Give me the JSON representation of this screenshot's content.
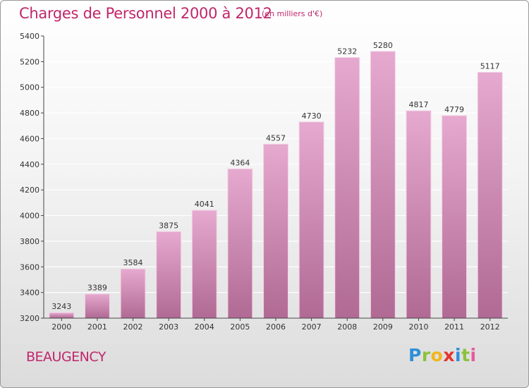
{
  "header": {
    "title": "Charges de Personnel 2000 à 2012",
    "subtitle": "(en milliers d'€)"
  },
  "footer": {
    "place": "BEAUGENCY",
    "logo_text": "Proxiti"
  },
  "colors": {
    "title": "#c0266a",
    "bar_top": "#e6a9cf",
    "bar_bottom": "#b06a94",
    "bar_stroke": "#f3d3e6",
    "grid": "#ffffff",
    "axis": "#444444"
  },
  "chart_data": {
    "type": "bar",
    "categories": [
      "2000",
      "2001",
      "2002",
      "2003",
      "2004",
      "2005",
      "2006",
      "2007",
      "2008",
      "2009",
      "2010",
      "2011",
      "2012"
    ],
    "values": [
      3243,
      3389,
      3584,
      3875,
      4041,
      4364,
      4557,
      4730,
      5232,
      5280,
      4817,
      4779,
      5117
    ],
    "title": "Charges de Personnel 2000 à 2012",
    "xlabel": "",
    "ylabel": "",
    "ylim": [
      3200,
      5400
    ],
    "yticks": [
      3200,
      3400,
      3600,
      3800,
      4000,
      4200,
      4400,
      4600,
      4800,
      5000,
      5200,
      5400
    ],
    "grid": true,
    "legend": "none"
  }
}
